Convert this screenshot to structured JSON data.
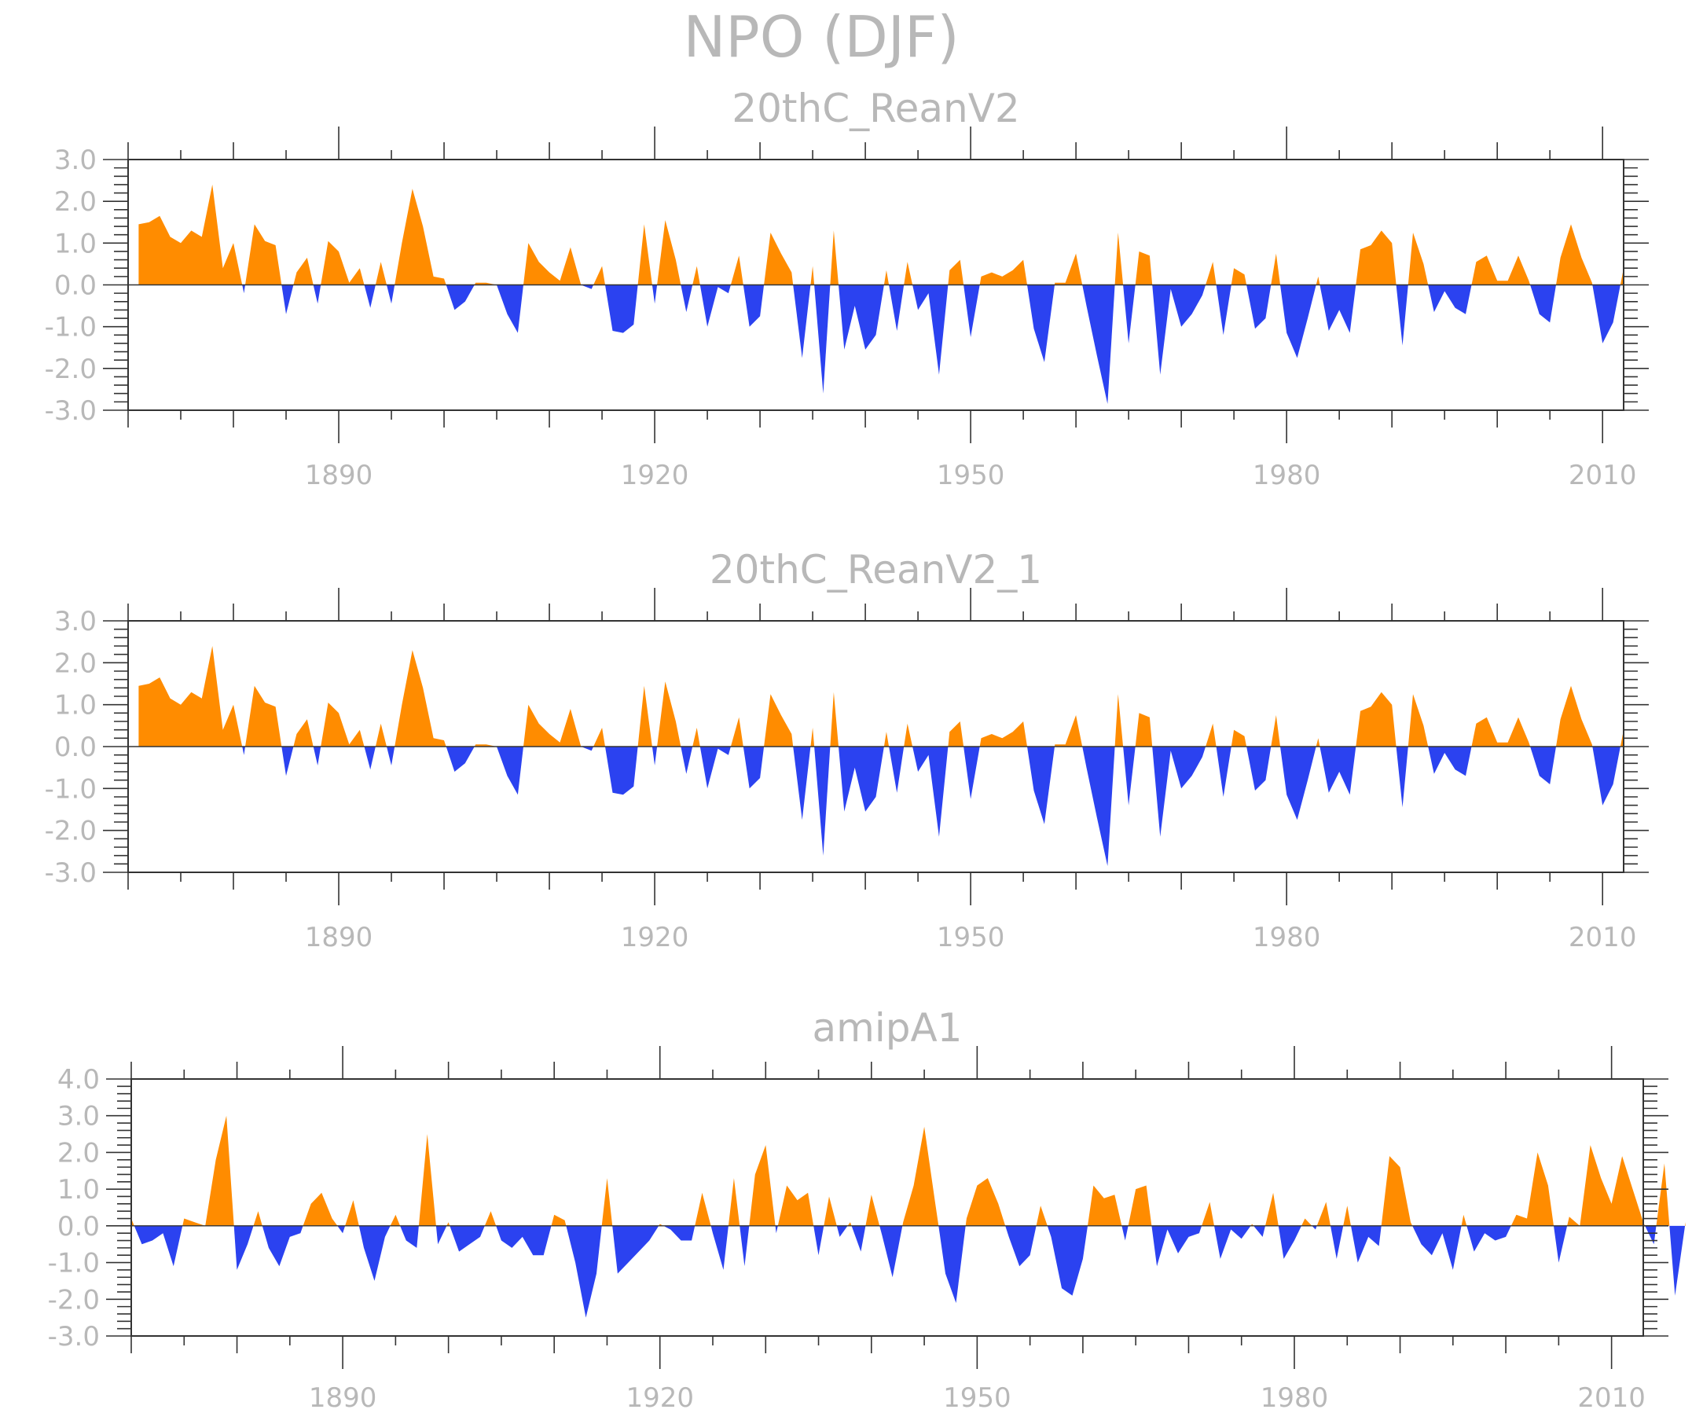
{
  "title": "NPO (DJF)",
  "colors": {
    "positive": "#ff8c00",
    "negative": "#2b42f0"
  },
  "chart_data": [
    {
      "type": "area",
      "title": "20thC_ReanV2",
      "xlabel": "",
      "ylabel": "",
      "x_ticks": [
        1890,
        1920,
        1950,
        1980,
        2010
      ],
      "y_ticks": [
        "3.0",
        "2.0",
        "1.0",
        "0.0",
        "-1.0",
        "-2.0",
        "-3.0"
      ],
      "xlim": [
        1870,
        2012
      ],
      "ylim": [
        -3,
        3
      ],
      "grid": false,
      "fill": "orange above zero, blue below zero",
      "x_start": 1871,
      "values": [
        1.45,
        1.5,
        1.65,
        1.15,
        1.0,
        1.3,
        1.15,
        2.4,
        0.4,
        1.0,
        -0.2,
        1.45,
        1.05,
        0.95,
        -0.7,
        0.3,
        0.65,
        -0.45,
        1.05,
        0.8,
        0.05,
        0.4,
        -0.55,
        0.55,
        -0.45,
        1.0,
        2.3,
        1.4,
        0.2,
        0.15,
        -0.6,
        -0.4,
        0.05,
        0.05,
        0.0,
        -0.7,
        -1.15,
        1.0,
        0.55,
        0.3,
        0.1,
        0.9,
        0.0,
        -0.1,
        0.45,
        -1.1,
        -1.15,
        -0.95,
        1.45,
        -0.45,
        1.55,
        0.6,
        -0.65,
        0.45,
        -1.0,
        -0.05,
        -0.2,
        0.7,
        -1.0,
        -0.75,
        1.25,
        0.75,
        0.3,
        -1.75,
        0.45,
        -2.6,
        1.3,
        -1.55,
        -0.5,
        -1.55,
        -1.2,
        0.35,
        -1.1,
        0.55,
        -0.6,
        -0.2,
        -2.15,
        0.35,
        0.6,
        -1.25,
        0.2,
        0.3,
        0.2,
        0.35,
        0.6,
        -1.05,
        -1.85,
        0.05,
        0.05,
        0.75,
        -0.5,
        -1.7,
        -2.85,
        1.25,
        -1.4,
        0.8,
        0.7,
        -2.15,
        -0.1,
        -1.0,
        -0.7,
        -0.25,
        0.55,
        -1.2,
        0.4,
        0.25,
        -1.05,
        -0.8,
        0.75,
        -1.15,
        -1.75,
        -0.8,
        0.2,
        -1.1,
        -0.6,
        -1.15,
        0.85,
        0.95,
        1.3,
        1.0,
        -1.45,
        1.25,
        0.5,
        -0.65,
        -0.15,
        -0.55,
        -0.7,
        0.55,
        0.7,
        0.1,
        0.1,
        0.7,
        0.1,
        -0.7,
        -0.9,
        0.65,
        1.45,
        0.65,
        0.05,
        -1.4,
        -0.9,
        0.4
      ]
    },
    {
      "type": "area",
      "title": "20thC_ReanV2_1",
      "xlabel": "",
      "ylabel": "",
      "x_ticks": [
        1890,
        1920,
        1950,
        1980,
        2010
      ],
      "y_ticks": [
        "3.0",
        "2.0",
        "1.0",
        "0.0",
        "-1.0",
        "-2.0",
        "-3.0"
      ],
      "xlim": [
        1870,
        2012
      ],
      "ylim": [
        -3,
        3
      ],
      "grid": false,
      "fill": "orange above zero, blue below zero",
      "x_start": 1871,
      "values": [
        1.45,
        1.5,
        1.65,
        1.15,
        1.0,
        1.3,
        1.15,
        2.4,
        0.4,
        1.0,
        -0.2,
        1.45,
        1.05,
        0.95,
        -0.7,
        0.3,
        0.65,
        -0.45,
        1.05,
        0.8,
        0.05,
        0.4,
        -0.55,
        0.55,
        -0.45,
        1.0,
        2.3,
        1.4,
        0.2,
        0.15,
        -0.6,
        -0.4,
        0.05,
        0.05,
        0.0,
        -0.7,
        -1.15,
        1.0,
        0.55,
        0.3,
        0.1,
        0.9,
        0.0,
        -0.1,
        0.45,
        -1.1,
        -1.15,
        -0.95,
        1.45,
        -0.45,
        1.55,
        0.6,
        -0.65,
        0.45,
        -1.0,
        -0.05,
        -0.2,
        0.7,
        -1.0,
        -0.75,
        1.25,
        0.75,
        0.3,
        -1.75,
        0.45,
        -2.6,
        1.3,
        -1.55,
        -0.5,
        -1.55,
        -1.2,
        0.35,
        -1.1,
        0.55,
        -0.6,
        -0.2,
        -2.15,
        0.35,
        0.6,
        -1.25,
        0.2,
        0.3,
        0.2,
        0.35,
        0.6,
        -1.05,
        -1.85,
        0.05,
        0.05,
        0.75,
        -0.5,
        -1.7,
        -2.85,
        1.25,
        -1.4,
        0.8,
        0.7,
        -2.15,
        -0.1,
        -1.0,
        -0.7,
        -0.25,
        0.55,
        -1.2,
        0.4,
        0.25,
        -1.05,
        -0.8,
        0.75,
        -1.15,
        -1.75,
        -0.8,
        0.2,
        -1.1,
        -0.6,
        -1.15,
        0.85,
        0.95,
        1.3,
        1.0,
        -1.45,
        1.25,
        0.5,
        -0.65,
        -0.15,
        -0.55,
        -0.7,
        0.55,
        0.7,
        0.1,
        0.1,
        0.7,
        0.1,
        -0.7,
        -0.9,
        0.65,
        1.45,
        0.65,
        0.05,
        -1.4,
        -0.9,
        0.4
      ]
    },
    {
      "type": "area",
      "title": "amipA1",
      "xlabel": "",
      "ylabel": "",
      "x_ticks": [
        1890,
        1920,
        1950,
        1980,
        2010
      ],
      "y_ticks": [
        "4.0",
        "3.0",
        "2.0",
        "1.0",
        "0.0",
        "-1.0",
        "-2.0",
        "-3.0"
      ],
      "xlim": [
        1870,
        2013
      ],
      "ylim": [
        -3,
        4
      ],
      "grid": false,
      "fill": "orange above zero, blue below zero",
      "x_start": 1870,
      "values": [
        0.2,
        -0.5,
        -0.4,
        -0.2,
        -1.1,
        0.2,
        0.1,
        0.0,
        1.8,
        3.0,
        -1.2,
        -0.5,
        0.4,
        -0.6,
        -1.1,
        -0.3,
        -0.2,
        0.6,
        0.9,
        0.2,
        -0.2,
        0.7,
        -0.6,
        -1.5,
        -0.3,
        0.3,
        -0.4,
        -0.6,
        2.5,
        -0.5,
        0.1,
        -0.7,
        -0.5,
        -0.3,
        0.4,
        -0.4,
        -0.6,
        -0.3,
        -0.8,
        -0.8,
        0.3,
        0.15,
        -1.0,
        -2.5,
        -1.3,
        1.3,
        -1.3,
        -1.0,
        -0.7,
        -0.4,
        0.05,
        -0.1,
        -0.4,
        -0.4,
        0.9,
        -0.2,
        -1.2,
        1.3,
        -1.1,
        1.4,
        2.2,
        -0.2,
        1.1,
        0.7,
        0.9,
        -0.8,
        0.8,
        -0.3,
        0.1,
        -0.7,
        0.85,
        -0.25,
        -1.4,
        0.1,
        1.1,
        2.7,
        0.7,
        -1.3,
        -2.1,
        0.2,
        1.1,
        1.3,
        0.6,
        -0.3,
        -1.1,
        -0.8,
        0.55,
        -0.3,
        -1.7,
        -1.9,
        -0.9,
        1.1,
        0.75,
        0.85,
        -0.4,
        1.0,
        1.1,
        -1.1,
        -0.1,
        -0.75,
        -0.3,
        -0.2,
        0.65,
        -0.9,
        -0.1,
        -0.35,
        0.05,
        -0.3,
        0.9,
        -0.9,
        -0.4,
        0.2,
        -0.1,
        0.65,
        -0.9,
        0.55,
        -1.0,
        -0.3,
        -0.55,
        1.9,
        1.6,
        0.1,
        -0.5,
        -0.8,
        -0.2,
        -1.2,
        0.3,
        -0.7,
        -0.2,
        -0.4,
        -0.3,
        0.3,
        0.2,
        2.0,
        1.1,
        -1.0,
        0.25,
        0.0,
        2.2,
        1.3,
        0.6,
        1.9,
        1.0,
        0.1,
        -0.5,
        1.7,
        -1.9,
        0.1
      ]
    }
  ]
}
